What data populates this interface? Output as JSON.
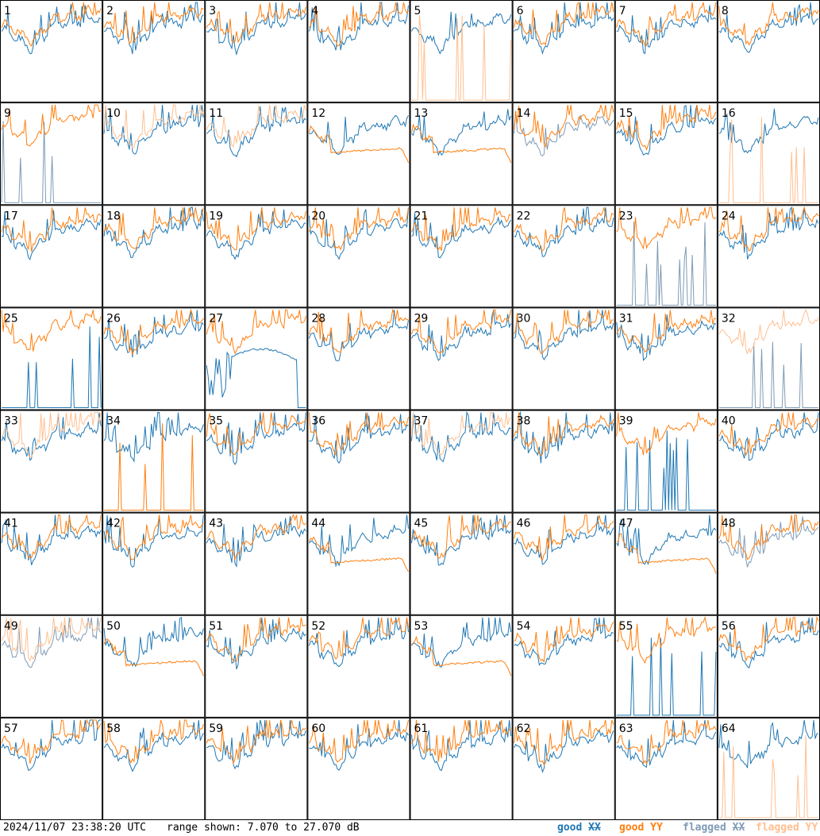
{
  "footer": {
    "timestamp": "2024/11/07 23:38:20 UTC",
    "range": "range shown: 7.070 to 27.070 dB"
  },
  "legend": {
    "good_xx": {
      "word": "good",
      "pol": "XX",
      "color": "#1f77b4"
    },
    "good_yy": {
      "word": "good",
      "pol": "YY",
      "color": "#ff7f0e"
    },
    "flagged_xx": {
      "word": "flagged",
      "pol": "XX",
      "color": "#7f9bb5"
    },
    "flagged_yy": {
      "word": "flagged",
      "pol": "YY",
      "color": "#ffbf8f"
    }
  },
  "chart_data": {
    "type": "line",
    "ylim": [
      7.07,
      27.07
    ],
    "units": "dB",
    "grid_rows": 8,
    "grid_cols": 8,
    "panels": [
      {
        "label": "1",
        "xx": "good",
        "yy": "good",
        "mode": "normal"
      },
      {
        "label": "2",
        "xx": "good",
        "yy": "good",
        "mode": "normal"
      },
      {
        "label": "3",
        "xx": "good",
        "yy": "good",
        "mode": "normal"
      },
      {
        "label": "4",
        "xx": "good",
        "yy": "good",
        "mode": "normal"
      },
      {
        "label": "5",
        "xx": "good",
        "yy": "flagged",
        "mode": "yy_dead"
      },
      {
        "label": "6",
        "xx": "good",
        "yy": "good",
        "mode": "normal"
      },
      {
        "label": "7",
        "xx": "good",
        "yy": "good",
        "mode": "normal"
      },
      {
        "label": "8",
        "xx": "good",
        "yy": "good",
        "mode": "normal"
      },
      {
        "label": "9",
        "xx": "flagged",
        "yy": "good",
        "mode": "xx_dead"
      },
      {
        "label": "10",
        "xx": "good",
        "yy": "flagged",
        "mode": "normal"
      },
      {
        "label": "11",
        "xx": "good",
        "yy": "flagged",
        "mode": "normal"
      },
      {
        "label": "12",
        "xx": "good",
        "yy": "good",
        "mode": "flat_yy"
      },
      {
        "label": "13",
        "xx": "good",
        "yy": "good",
        "mode": "flat_yy"
      },
      {
        "label": "14",
        "xx": "flagged",
        "yy": "good",
        "mode": "normal"
      },
      {
        "label": "15",
        "xx": "good",
        "yy": "good",
        "mode": "normal"
      },
      {
        "label": "16",
        "xx": "good",
        "yy": "flagged",
        "mode": "yy_dead"
      },
      {
        "label": "17",
        "xx": "good",
        "yy": "good",
        "mode": "normal"
      },
      {
        "label": "18",
        "xx": "good",
        "yy": "good",
        "mode": "normal"
      },
      {
        "label": "19",
        "xx": "good",
        "yy": "good",
        "mode": "normal"
      },
      {
        "label": "20",
        "xx": "good",
        "yy": "good",
        "mode": "normal"
      },
      {
        "label": "21",
        "xx": "good",
        "yy": "good",
        "mode": "normal"
      },
      {
        "label": "22",
        "xx": "good",
        "yy": "good",
        "mode": "normal"
      },
      {
        "label": "23",
        "xx": "flagged",
        "yy": "good",
        "mode": "xx_dead"
      },
      {
        "label": "24",
        "xx": "good",
        "yy": "good",
        "mode": "normal"
      },
      {
        "label": "25",
        "xx": "good",
        "yy": "good",
        "mode": "xx_dead"
      },
      {
        "label": "26",
        "xx": "good",
        "yy": "good",
        "mode": "normal"
      },
      {
        "label": "27",
        "xx": "good",
        "yy": "good",
        "mode": "xx_arc"
      },
      {
        "label": "28",
        "xx": "good",
        "yy": "good",
        "mode": "normal"
      },
      {
        "label": "29",
        "xx": "good",
        "yy": "good",
        "mode": "normal"
      },
      {
        "label": "30",
        "xx": "good",
        "yy": "good",
        "mode": "normal"
      },
      {
        "label": "31",
        "xx": "good",
        "yy": "good",
        "mode": "normal"
      },
      {
        "label": "32",
        "xx": "flagged",
        "yy": "flagged",
        "mode": "xx_dead"
      },
      {
        "label": "33",
        "xx": "good",
        "yy": "flagged",
        "mode": "normal"
      },
      {
        "label": "34",
        "xx": "good",
        "yy": "good",
        "mode": "yy_dead"
      },
      {
        "label": "35",
        "xx": "good",
        "yy": "good",
        "mode": "normal"
      },
      {
        "label": "36",
        "xx": "good",
        "yy": "good",
        "mode": "normal"
      },
      {
        "label": "37",
        "xx": "good",
        "yy": "flagged",
        "mode": "normal"
      },
      {
        "label": "38",
        "xx": "good",
        "yy": "good",
        "mode": "normal"
      },
      {
        "label": "39",
        "xx": "good",
        "yy": "good",
        "mode": "xx_dead"
      },
      {
        "label": "40",
        "xx": "good",
        "yy": "good",
        "mode": "normal"
      },
      {
        "label": "41",
        "xx": "good",
        "yy": "good",
        "mode": "normal"
      },
      {
        "label": "42",
        "xx": "good",
        "yy": "good",
        "mode": "normal"
      },
      {
        "label": "43",
        "xx": "good",
        "yy": "good",
        "mode": "normal"
      },
      {
        "label": "44",
        "xx": "good",
        "yy": "good",
        "mode": "flat_yy"
      },
      {
        "label": "45",
        "xx": "good",
        "yy": "good",
        "mode": "normal"
      },
      {
        "label": "46",
        "xx": "good",
        "yy": "good",
        "mode": "normal"
      },
      {
        "label": "47",
        "xx": "good",
        "yy": "good",
        "mode": "flat_yy"
      },
      {
        "label": "48",
        "xx": "flagged",
        "yy": "good",
        "mode": "normal"
      },
      {
        "label": "49",
        "xx": "flagged",
        "yy": "flagged",
        "mode": "normal"
      },
      {
        "label": "50",
        "xx": "good",
        "yy": "good",
        "mode": "flat_yy"
      },
      {
        "label": "51",
        "xx": "good",
        "yy": "good",
        "mode": "normal"
      },
      {
        "label": "52",
        "xx": "good",
        "yy": "good",
        "mode": "normal"
      },
      {
        "label": "53",
        "xx": "good",
        "yy": "good",
        "mode": "flat_yy"
      },
      {
        "label": "54",
        "xx": "good",
        "yy": "good",
        "mode": "normal"
      },
      {
        "label": "55",
        "xx": "good",
        "yy": "good",
        "mode": "xx_dead"
      },
      {
        "label": "56",
        "xx": "good",
        "yy": "good",
        "mode": "normal"
      },
      {
        "label": "57",
        "xx": "good",
        "yy": "good",
        "mode": "normal"
      },
      {
        "label": "58",
        "xx": "good",
        "yy": "good",
        "mode": "normal"
      },
      {
        "label": "59",
        "xx": "good",
        "yy": "good",
        "mode": "normal"
      },
      {
        "label": "60",
        "xx": "good",
        "yy": "good",
        "mode": "normal"
      },
      {
        "label": "61",
        "xx": "good",
        "yy": "good",
        "mode": "normal"
      },
      {
        "label": "62",
        "xx": "good",
        "yy": "good",
        "mode": "normal"
      },
      {
        "label": "63",
        "xx": "good",
        "yy": "good",
        "mode": "normal"
      },
      {
        "label": "64",
        "xx": "good",
        "yy": "flagged",
        "mode": "yy_dead"
      }
    ]
  }
}
